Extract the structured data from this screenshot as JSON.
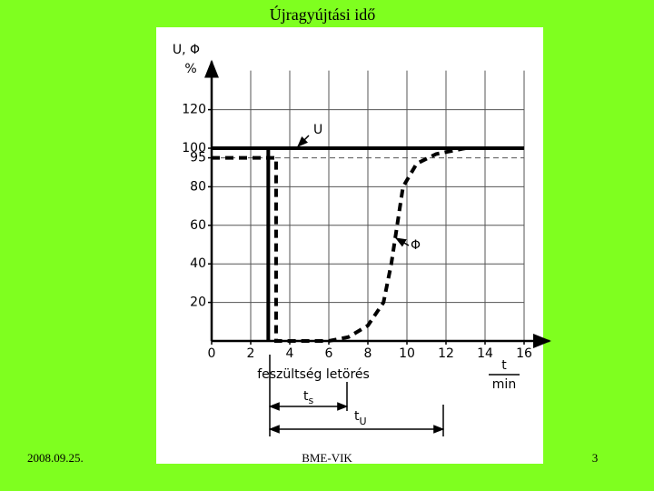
{
  "slide": {
    "title": "Újragyújtási idő",
    "footer_left": "2008.09.25.",
    "footer_center": "BME-VIK",
    "footer_right": "3"
  },
  "chart_data": {
    "type": "line",
    "y_label": "U, Φ",
    "y_unit": "%",
    "x_label": "t",
    "x_unit": "min",
    "annotations": {
      "drop": "feszültség letörés",
      "ts": {
        "main": "t",
        "sub": "s"
      },
      "tu": {
        "main": "t",
        "sub": "U"
      }
    },
    "xlim": [
      0,
      17.3
    ],
    "ylim": [
      0,
      145
    ],
    "xticks": [
      0,
      2,
      4,
      6,
      8,
      10,
      12,
      14,
      16
    ],
    "yticks": [
      20,
      40,
      60,
      80,
      95,
      100,
      120
    ],
    "grid": true,
    "series": [
      {
        "name": "U",
        "color": "#000000",
        "style": "solid",
        "x": [
          0,
          2.9,
          2.9,
          2.9,
          16
        ],
        "values": [
          100,
          100,
          0,
          100,
          100
        ]
      },
      {
        "name": "Φ",
        "color": "#000000",
        "style": "dashed",
        "x": [
          0,
          3.3,
          3.3,
          6,
          7,
          8,
          8.8,
          9.2,
          9.5,
          9.8,
          10.5,
          11.5,
          13,
          16
        ],
        "values": [
          95,
          95,
          0,
          0,
          2,
          8,
          20,
          40,
          60,
          80,
          92,
          97,
          100,
          100
        ]
      }
    ]
  }
}
